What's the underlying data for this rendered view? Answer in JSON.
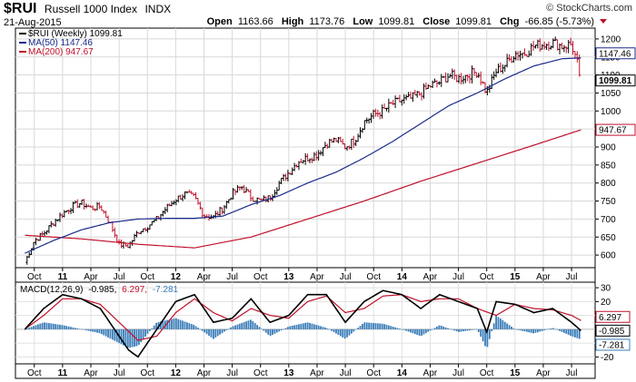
{
  "header": {
    "symbol": "$RUI",
    "name": "Russell 1000 Index",
    "exchange": "INDX",
    "date": "21-Aug-2015",
    "brand": "© StockCharts.com",
    "open_label": "Open",
    "open": "1163.66",
    "high_label": "High",
    "high": "1173.76",
    "low_label": "Low",
    "low": "1099.81",
    "close_label": "Close",
    "close": "1099.81",
    "chg_label": "Chg",
    "chg": "-66.85 (-5.73%)"
  },
  "legend": [
    {
      "label": "$RUI (Weekly) 1099.81",
      "color": "#000000"
    },
    {
      "label": "MA(50) 1147.46",
      "color": "#1a2a8c"
    },
    {
      "label": "MA(200) 947.67",
      "color": "#c0102a"
    }
  ],
  "x_labels": [
    {
      "text": "Oct",
      "month": 1,
      "year": false
    },
    {
      "text": "11",
      "month": 4,
      "year": true
    },
    {
      "text": "Apr",
      "month": 7,
      "year": false
    },
    {
      "text": "Jul",
      "month": 10,
      "year": false
    },
    {
      "text": "Oct",
      "month": 13,
      "year": false
    },
    {
      "text": "12",
      "month": 16,
      "year": true
    },
    {
      "text": "Apr",
      "month": 19,
      "year": false
    },
    {
      "text": "Jul",
      "month": 22,
      "year": false
    },
    {
      "text": "Oct",
      "month": 25,
      "year": false
    },
    {
      "text": "13",
      "month": 28,
      "year": true
    },
    {
      "text": "Apr",
      "month": 31,
      "year": false
    },
    {
      "text": "Jul",
      "month": 34,
      "year": false
    },
    {
      "text": "Oct",
      "month": 37,
      "year": false
    },
    {
      "text": "14",
      "month": 40,
      "year": true
    },
    {
      "text": "Apr",
      "month": 43,
      "year": false
    },
    {
      "text": "Jul",
      "month": 46,
      "year": false
    },
    {
      "text": "Oct",
      "month": 49,
      "year": false
    },
    {
      "text": "15",
      "month": 52,
      "year": true
    },
    {
      "text": "Apr",
      "month": 55,
      "year": false
    },
    {
      "text": "Jul",
      "month": 58,
      "year": false
    }
  ],
  "price_panel": {
    "y_ticks": [
      600,
      650,
      700,
      750,
      800,
      850,
      900,
      950,
      1000,
      1050,
      1100,
      1150,
      1200
    ],
    "ylim": [
      565,
      1230
    ],
    "value_boxes": [
      {
        "text": "1147.46",
        "value": 1147.46,
        "color": "#1a2a8c",
        "bold": false
      },
      {
        "text": "1099.81",
        "value": 1099.81,
        "color": "#000000",
        "bold": true
      },
      {
        "text": "947.67",
        "value": 947.67,
        "color": "#c0102a",
        "bold": false
      }
    ]
  },
  "macd_panel": {
    "label": "MACD(12,26,9)",
    "macd_text": "-0.985,",
    "signal_text": "6.297,",
    "hist_text": "-7.281",
    "signal_color": "#c0102a",
    "hist_color": "#3a7db8",
    "y_ticks": [
      -20,
      -10,
      0,
      10,
      20,
      30
    ],
    "ylim": [
      -25,
      34
    ],
    "value_boxes": [
      {
        "text": "6.297",
        "value": 6.297,
        "color": "#c0102a"
      },
      {
        "text": "-0.985",
        "value": -0.985,
        "color": "#000000"
      },
      {
        "text": "-7.281",
        "value": -7.281,
        "color": "#3a7db8"
      }
    ]
  },
  "chart_data": {
    "type": "line",
    "xlabel": "",
    "ylabel": "",
    "x_unit": "months since Sep 2010 (weekly bars, Sep 2010 – Aug 2015)",
    "series": [
      {
        "name": "$RUI (Weekly)",
        "style": "ohlc-bars",
        "x": [
          0,
          1,
          2,
          3,
          4,
          5,
          6,
          7,
          8,
          9,
          10,
          11,
          12,
          13,
          14,
          15,
          16,
          17,
          18,
          19,
          20,
          21,
          22,
          23,
          24,
          25,
          26,
          27,
          28,
          29,
          30,
          31,
          32,
          33,
          34,
          35,
          36,
          37,
          38,
          39,
          40,
          41,
          42,
          43,
          44,
          45,
          46,
          47,
          48,
          49,
          50,
          51,
          52,
          53,
          54,
          55,
          56,
          57,
          58,
          59
        ],
        "values": [
          580,
          640,
          660,
          690,
          715,
          735,
          745,
          730,
          735,
          690,
          630,
          625,
          665,
          680,
          700,
          730,
          755,
          770,
          760,
          710,
          705,
          730,
          770,
          790,
          760,
          750,
          760,
          800,
          830,
          860,
          870,
          880,
          910,
          920,
          900,
          920,
          970,
          990,
          1000,
          1020,
          1030,
          1035,
          1050,
          1070,
          1080,
          1100,
          1090,
          1100,
          1110,
          1050,
          1110,
          1130,
          1160,
          1160,
          1180,
          1185,
          1190,
          1180,
          1185,
          1100
        ]
      },
      {
        "name": "MA(50)",
        "x": [
          0,
          3,
          6,
          9,
          12,
          15,
          18,
          21,
          24,
          27,
          30,
          33,
          36,
          39,
          42,
          45,
          48,
          51,
          54,
          57,
          59
        ],
        "values": [
          605,
          640,
          670,
          690,
          700,
          702,
          702,
          708,
          740,
          765,
          800,
          830,
          870,
          915,
          965,
          1015,
          1050,
          1090,
          1125,
          1145,
          1147.46
        ]
      },
      {
        "name": "MA(200)",
        "x": [
          0,
          6,
          12,
          18,
          24,
          30,
          36,
          42,
          48,
          54,
          59
        ],
        "values": [
          655,
          645,
          630,
          620,
          650,
          700,
          750,
          805,
          855,
          905,
          947.67
        ]
      },
      {
        "name": "MACD",
        "x": [
          0,
          2,
          4,
          6,
          8,
          10,
          11,
          12,
          14,
          16,
          18,
          20,
          22,
          24,
          26,
          28,
          30,
          32,
          34,
          36,
          38,
          40,
          42,
          44,
          46,
          48,
          49,
          50,
          52,
          54,
          56,
          58,
          59
        ],
        "values": [
          0,
          15,
          25,
          22,
          15,
          -5,
          -15,
          -20,
          0,
          20,
          25,
          5,
          8,
          22,
          5,
          10,
          25,
          25,
          5,
          20,
          28,
          25,
          15,
          25,
          20,
          15,
          -2,
          20,
          18,
          12,
          15,
          5,
          -1
        ]
      },
      {
        "name": "Signal",
        "x": [
          0,
          2,
          4,
          6,
          8,
          10,
          12,
          14,
          16,
          18,
          20,
          22,
          24,
          26,
          28,
          30,
          32,
          34,
          36,
          38,
          40,
          42,
          44,
          46,
          48,
          50,
          52,
          54,
          56,
          58,
          59
        ],
        "values": [
          0,
          10,
          22,
          22,
          18,
          5,
          -8,
          -5,
          12,
          22,
          12,
          6,
          15,
          10,
          8,
          20,
          24,
          12,
          15,
          24,
          25,
          20,
          22,
          22,
          15,
          10,
          18,
          15,
          14,
          10,
          6.3
        ]
      }
    ]
  }
}
